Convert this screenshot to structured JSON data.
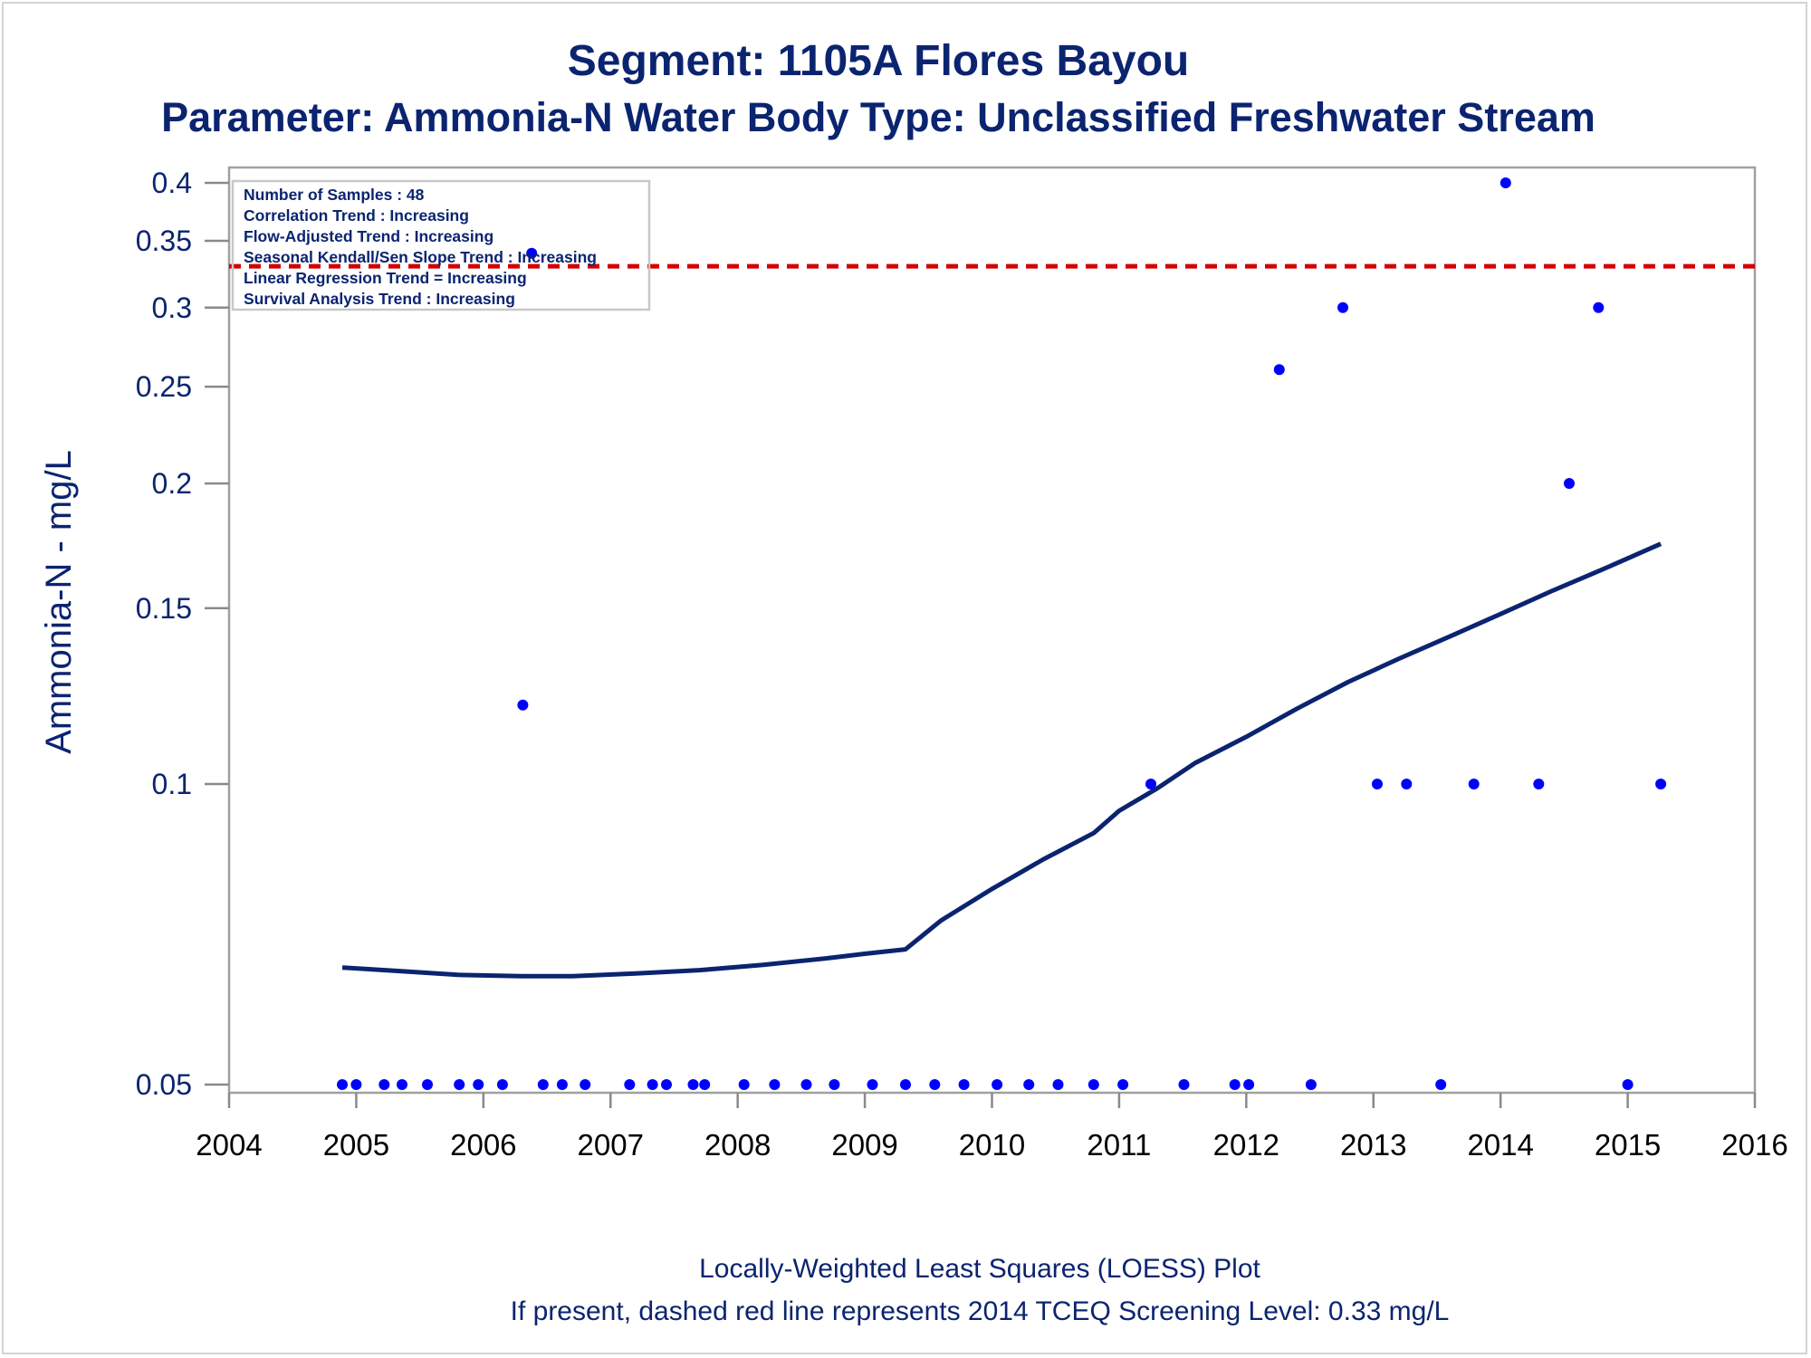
{
  "chart_data": {
    "type": "scatter",
    "title": "Segment: 1105A  Flores Bayou",
    "subtitle": "Parameter: Ammonia-N   Water Body Type: Unclassified Freshwater Stream",
    "xlabel": "",
    "ylabel": "Ammonia-N - mg/L",
    "x_ticks": [
      "2004",
      "2005",
      "2006",
      "2007",
      "2008",
      "2009",
      "2010",
      "2011",
      "2012",
      "2013",
      "2014",
      "2015",
      "2016"
    ],
    "y_ticks": [
      "0.05",
      "0.1",
      "0.15",
      "0.2",
      "0.25",
      "0.3",
      "0.35",
      "0.4"
    ],
    "xlim": [
      2004,
      2016
    ],
    "ylim": [
      0.05,
      0.4
    ],
    "y_scale": "log",
    "grid": false,
    "legend": "none",
    "inset_text": [
      "Number of Samples : 48",
      "Correlation Trend : Increasing",
      "Flow-Adjusted Trend : Increasing",
      "Seasonal Kendall/Sen Slope Trend : Increasing",
      "Linear Regression Trend = Increasing",
      "Survival Analysis Trend : Increasing"
    ],
    "footnotes": [
      "Locally-Weighted Least Squares (LOESS) Plot",
      "If present, dashed red line represents 2014 TCEQ Screening Level: 0.33 mg/L"
    ],
    "screening_level": 0.33,
    "series": [
      {
        "type": "scatter",
        "color": "#0000ff",
        "points": [
          [
            2004.89,
            0.05
          ],
          [
            2005.0,
            0.05
          ],
          [
            2005.22,
            0.05
          ],
          [
            2005.36,
            0.05
          ],
          [
            2005.56,
            0.05
          ],
          [
            2005.81,
            0.05
          ],
          [
            2005.96,
            0.05
          ],
          [
            2006.15,
            0.05
          ],
          [
            2006.47,
            0.05
          ],
          [
            2006.62,
            0.05
          ],
          [
            2006.8,
            0.05
          ],
          [
            2007.15,
            0.05
          ],
          [
            2007.33,
            0.05
          ],
          [
            2007.44,
            0.05
          ],
          [
            2007.65,
            0.05
          ],
          [
            2007.74,
            0.05
          ],
          [
            2008.05,
            0.05
          ],
          [
            2008.29,
            0.05
          ],
          [
            2008.54,
            0.05
          ],
          [
            2008.76,
            0.05
          ],
          [
            2009.06,
            0.05
          ],
          [
            2009.32,
            0.05
          ],
          [
            2009.55,
            0.05
          ],
          [
            2009.78,
            0.05
          ],
          [
            2010.04,
            0.05
          ],
          [
            2010.29,
            0.05
          ],
          [
            2010.52,
            0.05
          ],
          [
            2010.8,
            0.05
          ],
          [
            2011.03,
            0.05
          ],
          [
            2011.51,
            0.05
          ],
          [
            2011.91,
            0.05
          ],
          [
            2012.02,
            0.05
          ],
          [
            2012.51,
            0.05
          ],
          [
            2013.53,
            0.05
          ],
          [
            2015.0,
            0.05
          ],
          [
            2006.31,
            0.12
          ],
          [
            2006.38,
            0.34
          ],
          [
            2011.25,
            0.1
          ],
          [
            2012.26,
            0.26
          ],
          [
            2012.76,
            0.3
          ],
          [
            2013.03,
            0.1
          ],
          [
            2013.26,
            0.1
          ],
          [
            2013.79,
            0.1
          ],
          [
            2014.04,
            0.4
          ],
          [
            2014.3,
            0.1
          ],
          [
            2014.54,
            0.2
          ],
          [
            2014.77,
            0.3
          ],
          [
            2015.26,
            0.1
          ]
        ]
      },
      {
        "type": "line",
        "name": "",
        "color": "#0b2470",
        "points": [
          [
            2004.89,
            0.0655
          ],
          [
            2005.3,
            0.065
          ],
          [
            2005.8,
            0.0644
          ],
          [
            2006.3,
            0.0642
          ],
          [
            2006.7,
            0.0642
          ],
          [
            2007.2,
            0.0646
          ],
          [
            2007.7,
            0.0651
          ],
          [
            2008.2,
            0.0659
          ],
          [
            2008.7,
            0.0669
          ],
          [
            2009.0,
            0.0676
          ],
          [
            2009.32,
            0.0683
          ],
          [
            2009.6,
            0.073
          ],
          [
            2010.0,
            0.0785
          ],
          [
            2010.4,
            0.084
          ],
          [
            2010.8,
            0.0893
          ],
          [
            2011.0,
            0.094
          ],
          [
            2011.3,
            0.099
          ],
          [
            2011.6,
            0.105
          ],
          [
            2012.0,
            0.1115
          ],
          [
            2012.4,
            0.119
          ],
          [
            2012.8,
            0.1265
          ],
          [
            2013.2,
            0.1335
          ],
          [
            2013.6,
            0.1405
          ],
          [
            2014.0,
            0.148
          ],
          [
            2014.4,
            0.156
          ],
          [
            2014.8,
            0.164
          ],
          [
            2015.26,
            0.174
          ]
        ]
      }
    ]
  }
}
